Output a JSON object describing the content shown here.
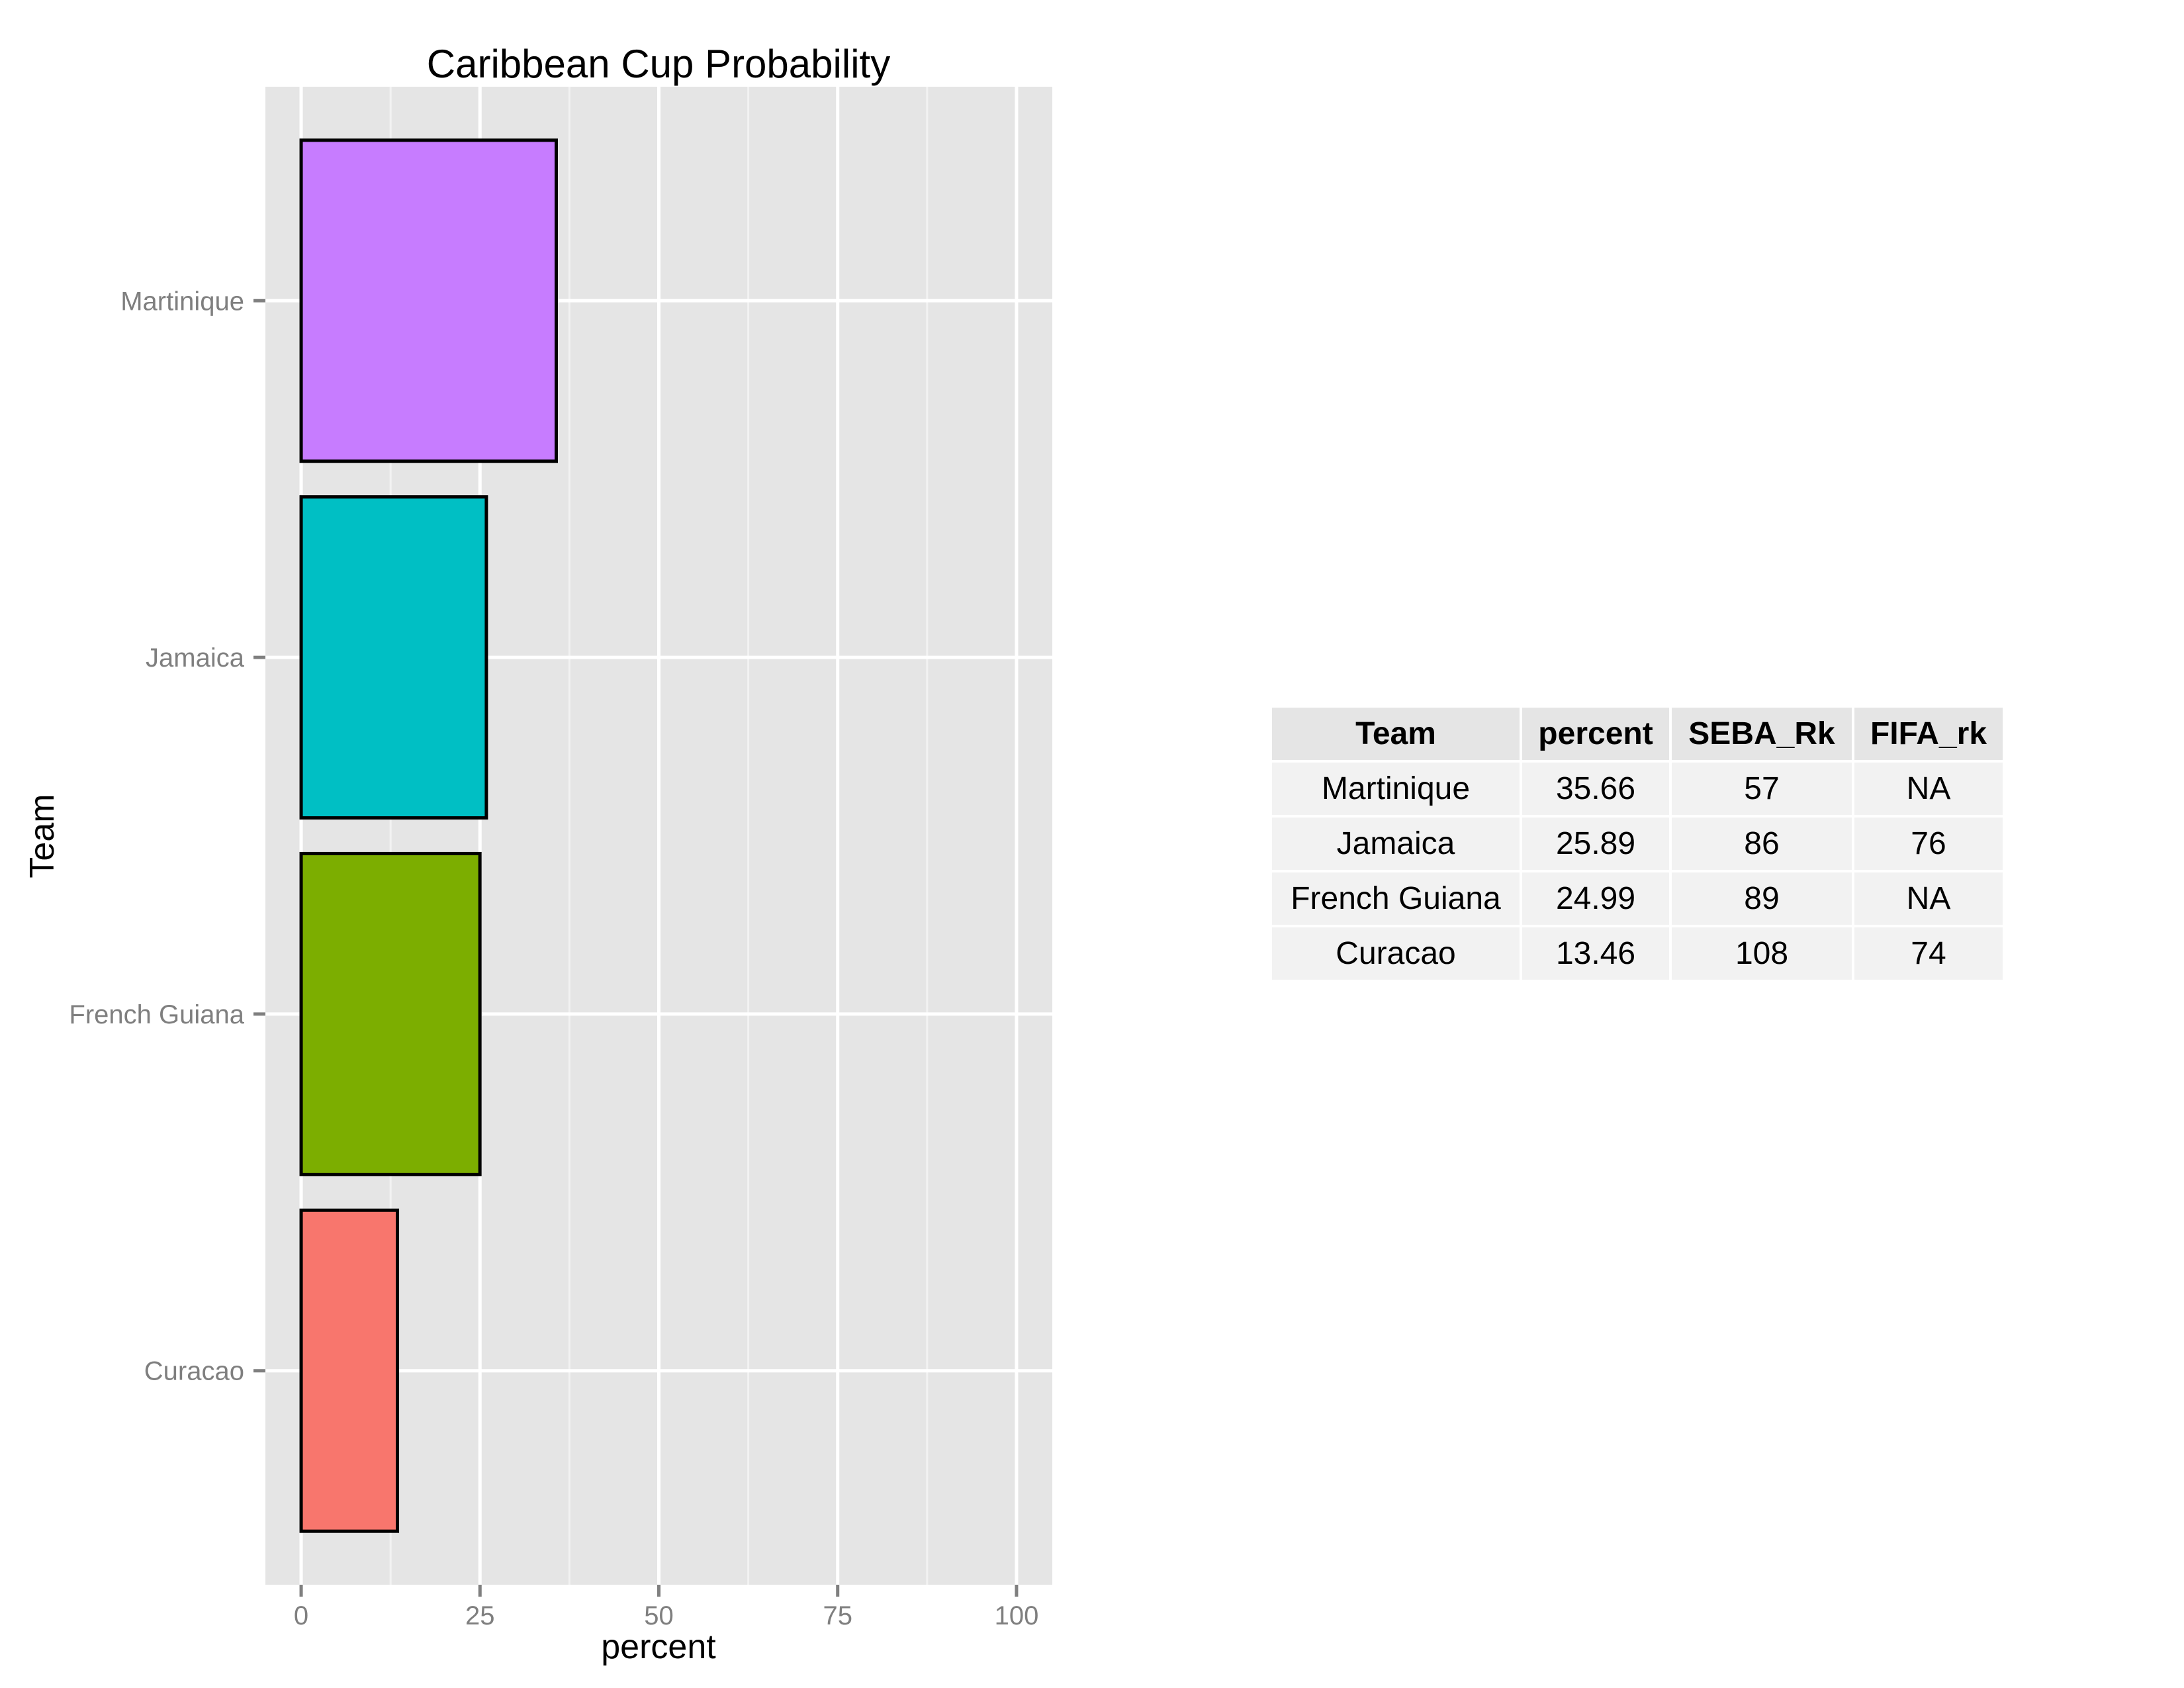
{
  "chart_data": {
    "type": "bar",
    "orientation": "horizontal",
    "title": "Caribbean Cup Probability",
    "xlabel": "percent",
    "ylabel": "Team",
    "xlim": [
      0,
      100
    ],
    "xticks": [
      0,
      25,
      50,
      75,
      100
    ],
    "xtick_labels": [
      "0",
      "25",
      "50",
      "75",
      "100"
    ],
    "grid": true,
    "legend": "none",
    "categories": [
      "Martinique",
      "Jamaica",
      "French Guiana",
      "Curacao"
    ],
    "values": [
      35.66,
      25.89,
      24.99,
      13.46
    ],
    "colors": [
      "#C77CFF",
      "#00BFC4",
      "#7CAE00",
      "#F8766D"
    ]
  },
  "table": {
    "headers": [
      "Team",
      "percent",
      "SEBA_Rk",
      "FIFA_rk"
    ],
    "rows": [
      [
        "Martinique",
        "35.66",
        "57",
        "NA"
      ],
      [
        "Jamaica",
        "25.89",
        "86",
        "76"
      ],
      [
        "French Guiana",
        "24.99",
        "89",
        "NA"
      ],
      [
        "Curacao",
        "13.46",
        "108",
        "74"
      ]
    ]
  },
  "colors": {
    "panel_background": "#E5E5E5",
    "grid_major": "#FFFFFF",
    "grid_minor": "#F2F2F2",
    "axis_text": "#7F7F7F",
    "table_header_bg": "#E5E5E5",
    "table_body_bg": "#F2F2F2"
  }
}
